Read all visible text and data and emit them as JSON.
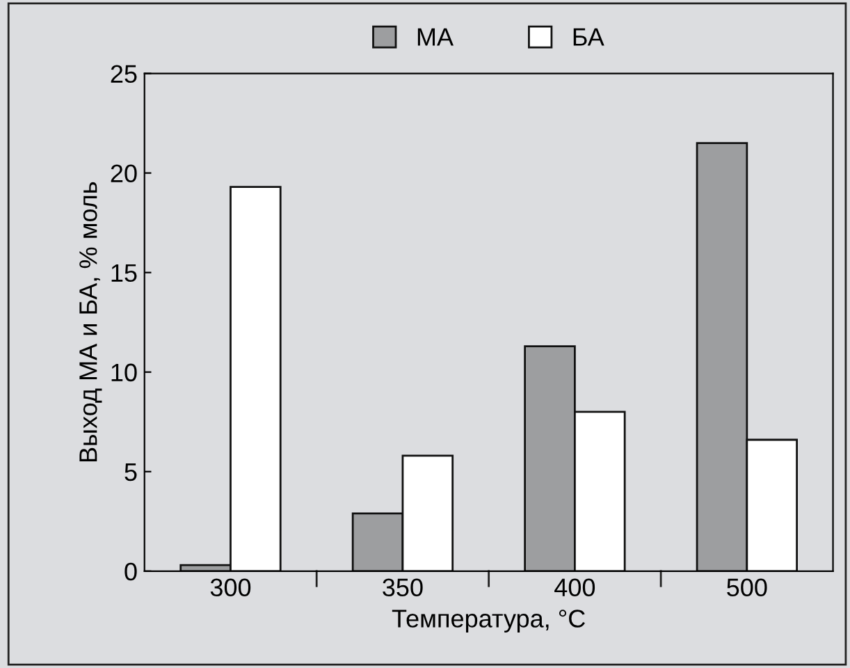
{
  "chart_data": {
    "type": "bar",
    "xlabel": "Температура, °C",
    "ylabel": "Выход МА и БА, % моль",
    "categories": [
      "300",
      "350",
      "400",
      "500"
    ],
    "series": [
      {
        "name": "МА",
        "color": "#9d9ea0",
        "values": [
          0.3,
          2.9,
          11.3,
          21.5
        ]
      },
      {
        "name": "БА",
        "color": "#ffffff",
        "values": [
          19.3,
          5.8,
          8.0,
          6.6
        ]
      }
    ],
    "ylim": [
      0,
      25
    ],
    "yticks": [
      0,
      5,
      10,
      15,
      20,
      25
    ],
    "grid": false,
    "legend": "top"
  }
}
